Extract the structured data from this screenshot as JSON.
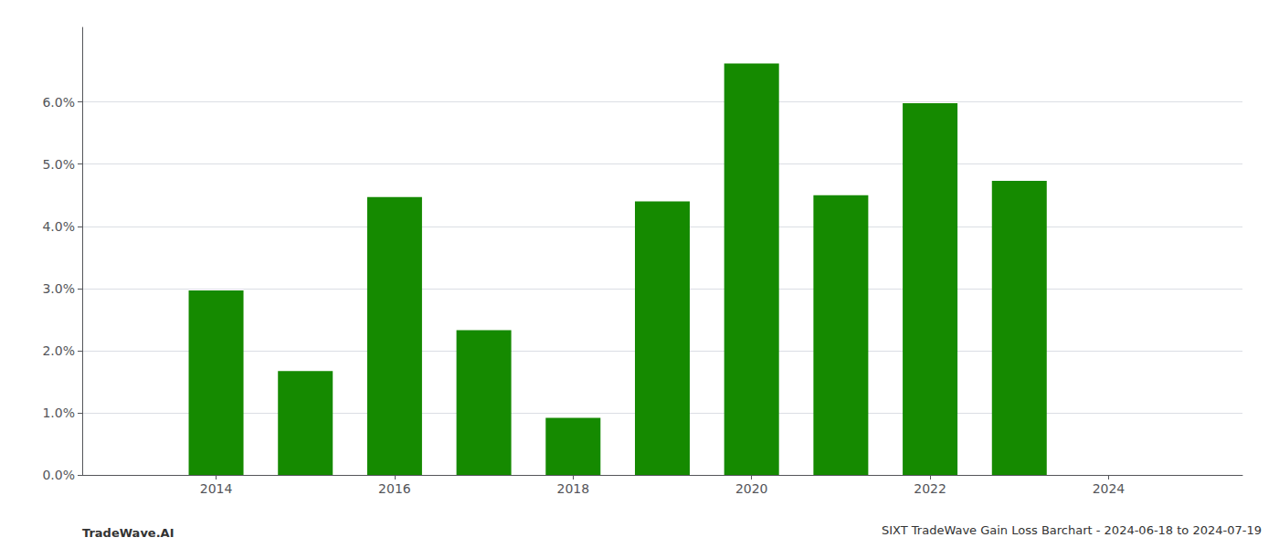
{
  "chart_data": {
    "type": "bar",
    "title": "SIXT TradeWave Gain Loss Barchart - 2024-06-18 to 2024-07-19",
    "annotations": [
      "TradeWave.AI"
    ],
    "x": [
      2014,
      2015,
      2016,
      2017,
      2018,
      2019,
      2020,
      2021,
      2022,
      2023
    ],
    "values": [
      0.0297,
      0.0167,
      0.0447,
      0.0233,
      0.0092,
      0.044,
      0.0662,
      0.045,
      0.0598,
      0.0473
    ],
    "color": "#158a00",
    "xlim": [
      2012.5,
      2025.5
    ],
    "xticks": [
      2014,
      2016,
      2018,
      2020,
      2022,
      2024
    ],
    "ylim": [
      0,
      0.072
    ],
    "yticks": [
      {
        "value": 0.0,
        "label": "0.0%"
      },
      {
        "value": 0.01,
        "label": "1.0%"
      },
      {
        "value": 0.02,
        "label": "2.0%"
      },
      {
        "value": 0.03,
        "label": "3.0%"
      },
      {
        "value": 0.04,
        "label": "4.0%"
      },
      {
        "value": 0.05,
        "label": "5.0%"
      },
      {
        "value": 0.06,
        "label": "6.0%"
      }
    ],
    "grid": true
  }
}
